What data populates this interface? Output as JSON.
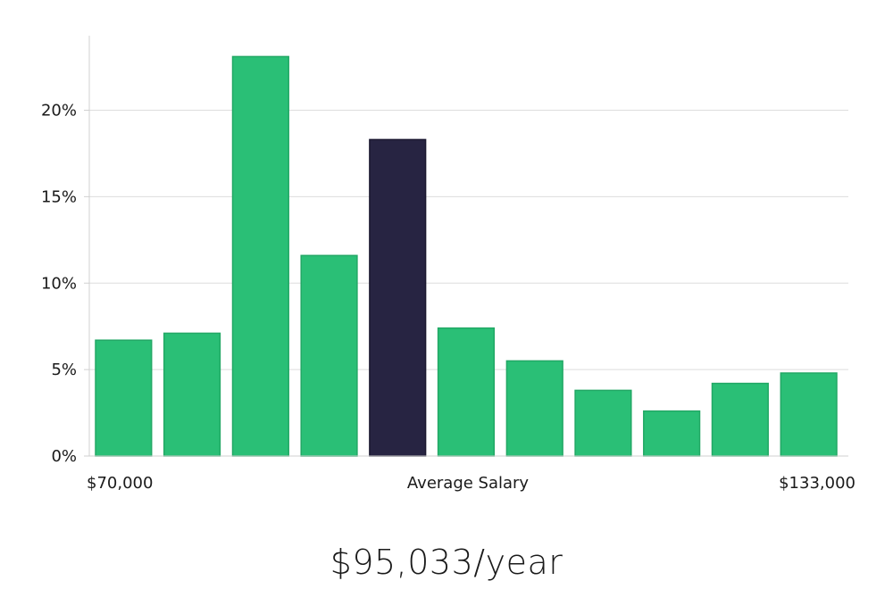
{
  "chart_data": {
    "type": "bar",
    "y_ticks": [
      "0%",
      "5%",
      "10%",
      "15%",
      "20%"
    ],
    "y_tick_values": [
      0,
      5,
      10,
      15,
      20
    ],
    "ylim": [
      0,
      24
    ],
    "values": [
      6.7,
      7.1,
      23.1,
      11.6,
      18.3,
      7.4,
      5.5,
      3.8,
      2.6,
      4.2,
      4.8
    ],
    "highlight_index": 4,
    "x_labels": {
      "left": "$70,000",
      "center": "Average Salary",
      "right": "$133,000"
    },
    "grid": true,
    "colors": {
      "bar": "#2abf76",
      "bar_border": "#22a865",
      "highlight": "#272442",
      "highlight_border": "#1b1830"
    }
  },
  "salary_text": "$95,033/year"
}
